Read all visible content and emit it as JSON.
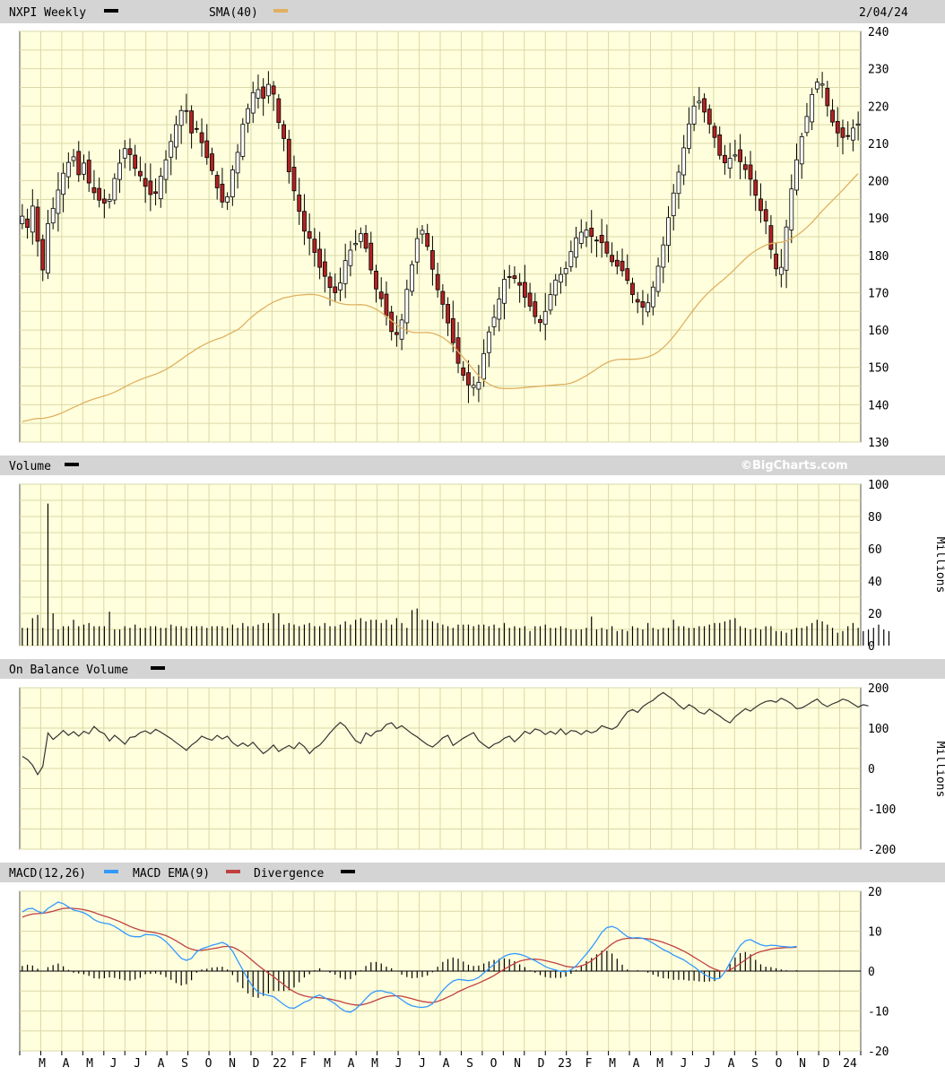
{
  "header": {
    "symbol_label": "NXPI Weekly",
    "sma_label": "SMA(40)",
    "date": "2/04/24"
  },
  "colors": {
    "panel_bg": "#ffffdd",
    "grid": "#d9d8a8",
    "header_bar": "#d4d4d4",
    "up_candle": "#ffffff",
    "down_candle": "#b22222",
    "sma_line": "#e0b060",
    "macd_line": "#3399ff",
    "macd_ema_line": "#c04040",
    "obv_line": "#333333"
  },
  "volume_panel": {
    "title": "Volume",
    "brand": "©BigCharts.com",
    "unit": "Millions"
  },
  "obv_panel": {
    "title": "On Balance Volume",
    "unit": "Millions"
  },
  "macd_panel": {
    "title_macd": "MACD(12,26)",
    "title_ema": "MACD EMA(9)",
    "title_div": "Divergence"
  },
  "chart_data": [
    {
      "type": "candlestick",
      "title": "NXPI Weekly",
      "y_ticks": [
        240,
        230,
        220,
        210,
        200,
        190,
        180,
        170,
        160,
        150,
        140,
        130
      ],
      "ylim": [
        130,
        240
      ],
      "x_month_labels": [
        "M",
        "A",
        "M",
        "J",
        "J",
        "A",
        "S",
        "O",
        "N",
        "D",
        "22",
        "F",
        "M",
        "A",
        "M",
        "J",
        "J",
        "A",
        "S",
        "O",
        "N",
        "D",
        "23",
        "F",
        "M",
        "A",
        "M",
        "J",
        "J",
        "A",
        "S",
        "O",
        "N",
        "D",
        "24"
      ],
      "close": [
        190.5,
        187.5,
        193.2,
        183.8,
        176.1,
        188.5,
        192.6,
        197.5,
        202.0,
        204.9,
        206.4,
        201.6,
        204.7,
        199.4,
        196.8,
        194.8,
        194.0,
        195.0,
        200.6,
        204.7,
        208.6,
        207.0,
        203.3,
        201.3,
        198.5,
        196.3,
        196.6,
        201.2,
        205.6,
        210.5,
        215.0,
        218.8,
        218.8,
        212.8,
        213.9,
        210.2,
        206.2,
        202.7,
        198.1,
        194.3,
        195.7,
        202.9,
        207.6,
        215.1,
        219.3,
        223.6,
        224.4,
        222.1,
        225.8,
        223.2,
        215.6,
        211.3,
        202.4,
        197.3,
        191.8,
        186.5,
        184.6,
        180.8,
        176.8,
        174.4,
        171.4,
        170.0,
        172.6,
        178.6,
        181.4,
        183.2,
        185.8,
        181.9,
        176.1,
        171.0,
        168.4,
        163.8,
        159.6,
        158.8,
        162.7,
        170.9,
        177.5,
        184.5,
        186.7,
        182.4,
        176.3,
        170.8,
        166.9,
        161.9,
        156.6,
        151.1,
        147.9,
        145.3,
        145.2,
        146.0,
        153.7,
        159.5,
        163.4,
        168.3,
        173.6,
        174.2,
        173.8,
        172.0,
        168.8,
        166.4,
        163.6,
        162.0,
        165.0,
        169.5,
        173.4,
        174.9,
        176.5,
        181.0,
        184.7,
        186.2,
        186.8,
        185.1,
        183.9,
        183.4,
        180.6,
        178.3,
        177.1,
        175.9,
        173.3,
        169.5,
        167.5,
        166.1,
        167.3,
        171.5,
        177.1,
        182.8,
        190.1,
        196.7,
        202.3,
        208.8,
        215.2,
        220.0,
        221.3,
        218.4,
        215.2,
        211.6,
        206.8,
        204.8,
        206.0,
        206.9,
        205.1,
        203.0,
        200.4,
        196.1,
        192.0,
        189.2,
        181.6,
        176.4,
        176.8,
        187.6,
        197.8,
        205.6,
        211.8,
        217.2,
        223.1,
        226.4,
        225.9,
        220.1,
        215.7,
        212.8,
        211.6,
        212.0,
        214.1,
        215.2
      ],
      "sma_40_start": 135.5,
      "sma_40_end": 201.9
    },
    {
      "type": "bar",
      "title": "Volume",
      "y_ticks": [
        100,
        80,
        60,
        40,
        20,
        0
      ],
      "ylim": [
        0,
        100
      ],
      "ylabel": "Millions",
      "values": [
        11,
        11,
        17,
        19,
        11,
        88,
        20,
        10,
        12,
        12,
        16,
        12,
        13,
        14,
        12,
        12,
        12,
        21,
        10,
        10,
        12,
        11,
        13,
        11,
        11,
        12,
        12,
        11,
        11,
        13,
        12,
        12,
        11,
        12,
        12,
        12,
        11,
        12,
        12,
        12,
        11,
        13,
        11,
        14,
        12,
        12,
        13,
        14,
        14,
        20,
        20,
        13,
        14,
        13,
        12,
        13,
        14,
        12,
        12,
        14,
        12,
        12,
        13,
        15,
        13,
        16,
        17,
        15,
        16,
        16,
        14,
        16,
        13,
        17,
        14,
        11,
        22,
        23,
        16,
        16,
        15,
        14,
        13,
        12,
        11,
        13,
        13,
        13,
        12,
        13,
        13,
        12,
        13,
        11,
        14,
        11,
        12,
        11,
        12,
        9,
        12,
        12,
        13,
        11,
        11,
        12,
        11,
        10,
        10,
        10,
        11,
        18,
        10,
        11,
        10,
        12,
        9,
        10,
        9,
        12,
        11,
        10,
        14,
        11,
        10,
        11,
        11,
        16,
        12,
        12,
        11,
        11,
        12,
        12,
        13,
        14,
        14,
        15,
        16,
        17,
        12,
        11,
        10,
        11,
        10,
        12,
        12,
        9,
        9,
        8,
        10,
        11,
        11,
        12,
        14,
        16,
        15,
        13,
        11,
        8,
        9,
        12,
        14,
        11,
        9,
        10,
        11,
        13,
        10,
        9
      ]
    },
    {
      "type": "line",
      "title": "On Balance Volume",
      "y_ticks": [
        200,
        100,
        0,
        -100,
        -200
      ],
      "ylim": [
        -200,
        200
      ],
      "ylabel": "Millions",
      "values": [
        30,
        22,
        8,
        -15,
        5,
        88,
        72,
        82,
        94,
        82,
        91,
        80,
        92,
        86,
        104,
        92,
        86,
        68,
        82,
        72,
        60,
        77,
        79,
        89,
        93,
        86,
        97,
        90,
        82,
        74,
        64,
        55,
        45,
        58,
        67,
        80,
        74,
        70,
        82,
        73,
        80,
        64,
        55,
        63,
        55,
        65,
        50,
        37,
        46,
        58,
        42,
        50,
        57,
        49,
        64,
        54,
        37,
        50,
        58,
        72,
        88,
        102,
        114,
        104,
        86,
        69,
        62,
        88,
        80,
        92,
        94,
        109,
        113,
        99,
        106,
        96,
        86,
        78,
        68,
        59,
        53,
        63,
        76,
        82,
        57,
        66,
        75,
        82,
        89,
        69,
        59,
        50,
        60,
        65,
        75,
        80,
        66,
        78,
        92,
        86,
        98,
        94,
        84,
        92,
        85,
        98,
        84,
        94,
        92,
        84,
        94,
        88,
        93,
        106,
        101,
        97,
        104,
        123,
        140,
        146,
        139,
        153,
        162,
        169,
        180,
        188,
        179,
        170,
        157,
        147,
        158,
        151,
        140,
        135,
        147,
        138,
        130,
        120,
        113,
        128,
        138,
        148,
        142,
        152,
        160,
        166,
        168,
        164,
        174,
        168,
        160,
        148,
        150,
        157,
        165,
        172,
        160,
        153,
        160,
        165,
        172,
        168,
        160,
        152,
        158,
        155
      ]
    },
    {
      "type": "line",
      "title": "MACD(12,26)",
      "y_ticks": [
        20,
        10,
        0,
        -10,
        -20
      ],
      "ylim": [
        -20,
        20
      ],
      "series": [
        {
          "name": "MACD(12,26)",
          "values": [
            14.8,
            15.6,
            15.7,
            15.0,
            14.5,
            15.7,
            16.5,
            17.3,
            16.9,
            16.1,
            15.3,
            15.0,
            14.6,
            13.9,
            12.9,
            12.3,
            12.0,
            11.8,
            11.2,
            10.4,
            9.5,
            8.8,
            8.6,
            8.6,
            9.2,
            9.1,
            9.0,
            8.4,
            7.4,
            6.1,
            4.6,
            3.2,
            2.7,
            3.2,
            4.8,
            5.6,
            6.0,
            6.5,
            6.8,
            7.2,
            6.6,
            5.0,
            2.6,
            0.3,
            -2.0,
            -4.0,
            -5.3,
            -5.8,
            -6.1,
            -6.4,
            -7.4,
            -8.4,
            -9.2,
            -9.3,
            -8.6,
            -7.8,
            -7.3,
            -6.4,
            -6.0,
            -6.7,
            -7.4,
            -8.2,
            -9.3,
            -10.1,
            -10.3,
            -9.5,
            -8.3,
            -6.9,
            -5.6,
            -5.0,
            -4.9,
            -5.3,
            -5.5,
            -6.3,
            -7.2,
            -8.1,
            -8.7,
            -9.0,
            -9.1,
            -8.9,
            -8.2,
            -6.5,
            -4.8,
            -3.5,
            -2.5,
            -2.1,
            -2.2,
            -2.4,
            -2.2,
            -1.6,
            -0.5,
            0.6,
            1.7,
            2.8,
            3.7,
            4.2,
            4.4,
            4.2,
            3.8,
            3.2,
            2.6,
            1.9,
            1.1,
            0.6,
            0.3,
            -0.1,
            -0.2,
            0.3,
            1.3,
            2.8,
            4.3,
            5.9,
            7.7,
            9.7,
            10.9,
            11.2,
            10.7,
            9.6,
            8.6,
            8.3,
            8.4,
            8.2,
            7.7,
            7.0,
            6.2,
            5.4,
            4.8,
            4.0,
            3.4,
            2.8,
            1.9,
            1.1,
            0.1,
            -0.8,
            -1.5,
            -2.0,
            -1.8,
            -0.3,
            2.1,
            4.4,
            6.4,
            7.6,
            7.9,
            7.2,
            6.6,
            6.3,
            6.5,
            6.4,
            6.2,
            6.1,
            6.0,
            6.2
          ]
        },
        {
          "name": "MACD EMA(9)",
          "values": [
            13.5,
            14.0,
            14.3,
            14.4,
            14.5,
            14.7,
            15.0,
            15.4,
            15.7,
            15.8,
            15.7,
            15.6,
            15.4,
            15.1,
            14.7,
            14.2,
            13.8,
            13.4,
            12.9,
            12.4,
            11.8,
            11.2,
            10.7,
            10.3,
            10.0,
            9.8,
            9.6,
            9.3,
            8.9,
            8.3,
            7.6,
            6.8,
            6.0,
            5.5,
            5.2,
            5.2,
            5.4,
            5.6,
            5.8,
            6.1,
            6.2,
            6.0,
            5.4,
            4.6,
            3.6,
            2.5,
            1.4,
            0.4,
            -0.5,
            -1.4,
            -2.4,
            -3.4,
            -4.4,
            -5.2,
            -5.8,
            -6.2,
            -6.5,
            -6.6,
            -6.7,
            -6.8,
            -7.0,
            -7.3,
            -7.6,
            -8.0,
            -8.3,
            -8.5,
            -8.5,
            -8.2,
            -7.8,
            -7.3,
            -6.8,
            -6.4,
            -6.2,
            -6.2,
            -6.3,
            -6.6,
            -6.9,
            -7.3,
            -7.6,
            -7.8,
            -7.9,
            -7.6,
            -7.1,
            -6.5,
            -5.9,
            -5.2,
            -4.6,
            -4.0,
            -3.5,
            -3.0,
            -2.4,
            -1.8,
            -1.1,
            -0.3,
            0.5,
            1.2,
            1.9,
            2.5,
            2.8,
            3.0,
            3.0,
            2.9,
            2.6,
            2.3,
            2.0,
            1.6,
            1.2,
            1.0,
            1.0,
            1.3,
            1.8,
            2.6,
            3.5,
            4.6,
            5.8,
            6.8,
            7.6,
            8.0,
            8.2,
            8.2,
            8.2,
            8.2,
            8.1,
            7.9,
            7.6,
            7.2,
            6.7,
            6.2,
            5.6,
            5.0,
            4.3,
            3.5,
            2.7,
            1.9,
            1.1,
            0.5,
            0.1,
            0.0,
            0.3,
            1.0,
            1.9,
            2.8,
            3.7,
            4.4,
            4.9,
            5.2,
            5.5,
            5.7,
            5.8,
            5.9,
            5.9,
            6.0
          ]
        },
        {
          "name": "Divergence",
          "values": [
            1.3,
            1.6,
            1.4,
            0.6,
            0.0,
            1.0,
            1.5,
            1.9,
            1.2,
            0.3,
            -0.4,
            -0.6,
            -0.8,
            -1.2,
            -1.8,
            -1.9,
            -1.8,
            -1.6,
            -1.7,
            -2.0,
            -2.3,
            -2.4,
            -2.1,
            -1.7,
            -0.8,
            -0.7,
            -0.6,
            -0.9,
            -1.5,
            -2.2,
            -3.0,
            -3.6,
            -3.3,
            -2.3,
            -0.4,
            0.4,
            0.6,
            0.9,
            1.0,
            1.1,
            0.4,
            -1.0,
            -2.8,
            -4.3,
            -5.6,
            -6.5,
            -6.7,
            -6.2,
            -5.6,
            -5.0,
            -5.0,
            -5.0,
            -4.8,
            -4.1,
            -2.8,
            -1.6,
            -0.8,
            0.2,
            0.7,
            0.1,
            -0.4,
            -0.9,
            -1.7,
            -2.1,
            -2.0,
            -1.0,
            0.2,
            1.3,
            2.2,
            2.3,
            1.9,
            1.1,
            0.7,
            -0.1,
            -0.9,
            -1.5,
            -1.8,
            -1.7,
            -1.5,
            -1.1,
            -0.3,
            1.1,
            2.3,
            3.0,
            3.4,
            3.1,
            2.4,
            1.6,
            1.3,
            1.4,
            1.9,
            2.4,
            2.8,
            3.1,
            3.2,
            3.0,
            2.5,
            1.7,
            1.0,
            0.2,
            -0.4,
            -1.0,
            -1.5,
            -1.7,
            -1.7,
            -1.7,
            -1.4,
            -0.7,
            0.3,
            1.5,
            2.5,
            3.3,
            4.2,
            5.1,
            5.1,
            4.4,
            3.1,
            1.6,
            0.4,
            0.1,
            0.2,
            0.0,
            -0.4,
            -0.9,
            -1.4,
            -1.8,
            -1.9,
            -2.2,
            -2.2,
            -2.2,
            -2.4,
            -2.4,
            -2.6,
            -2.7,
            -2.6,
            -2.5,
            -1.9,
            -0.3,
            1.8,
            3.4,
            4.5,
            4.8,
            4.2,
            2.8,
            1.7,
            1.1,
            1.0,
            0.7,
            0.4,
            0.2,
            0.1,
            0.2
          ]
        }
      ]
    }
  ]
}
